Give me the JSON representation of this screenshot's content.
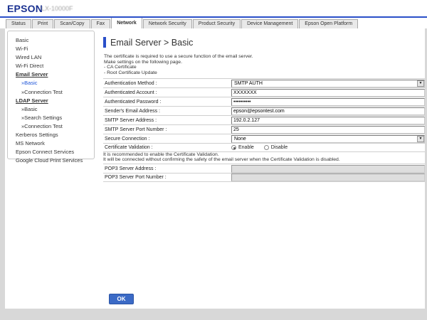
{
  "header": {
    "logo": "EPSON",
    "model": "LX-10000F"
  },
  "tabs": [
    {
      "label": "Status",
      "active": false
    },
    {
      "label": "Print",
      "active": false
    },
    {
      "label": "Scan/Copy",
      "active": false
    },
    {
      "label": "Fax",
      "active": false
    },
    {
      "label": "Network",
      "active": true
    },
    {
      "label": "Network Security",
      "active": false
    },
    {
      "label": "Product Security",
      "active": false
    },
    {
      "label": "Device Management",
      "active": false
    },
    {
      "label": "Epson Open Platform",
      "active": false
    }
  ],
  "sidebar": {
    "items": [
      {
        "label": "Basic",
        "type": "top",
        "selected": false
      },
      {
        "label": "Wi-Fi",
        "type": "top",
        "selected": false
      },
      {
        "label": "Wired LAN",
        "type": "top",
        "selected": false
      },
      {
        "label": "Wi-Fi Direct",
        "type": "top",
        "selected": false
      },
      {
        "label": "Email Server",
        "type": "section",
        "selected": false
      },
      {
        "label": "»Basic",
        "type": "sub",
        "selected": true
      },
      {
        "label": "»Connection Test",
        "type": "sub",
        "selected": false
      },
      {
        "label": "LDAP Server",
        "type": "section",
        "selected": false
      },
      {
        "label": "»Basic",
        "type": "sub",
        "selected": false
      },
      {
        "label": "»Search Settings",
        "type": "sub",
        "selected": false
      },
      {
        "label": "»Connection Test",
        "type": "sub",
        "selected": false
      },
      {
        "label": "Kerberos Settings",
        "type": "top",
        "selected": false
      },
      {
        "label": "MS Network",
        "type": "top",
        "selected": false
      },
      {
        "label": "Epson Connect Services",
        "type": "top",
        "selected": false
      },
      {
        "label": "Google Cloud Print Services",
        "type": "top",
        "selected": false
      }
    ]
  },
  "main": {
    "title": "Email Server > Basic",
    "description": [
      "The certificate is required to use a secure function of the email server.",
      "Make settings on the following page.",
      "- CA Certificate",
      "- Root Certificate Update"
    ],
    "form": {
      "rows": [
        {
          "label": "Authentication Method :",
          "type": "select",
          "value": "SMTP AUTH"
        },
        {
          "label": "Authenticated Account :",
          "type": "text",
          "value": "XXXXXXX"
        },
        {
          "label": "Authenticated Password :",
          "type": "password",
          "value": "••••••••••"
        },
        {
          "label": "Sender's Email Address :",
          "type": "text",
          "value": "epson@epsontest.com"
        },
        {
          "label": "SMTP Server Address :",
          "type": "text",
          "value": "192.0.2.127"
        },
        {
          "label": "SMTP Server Port Number :",
          "type": "text",
          "value": "25"
        },
        {
          "label": "Secure Connection :",
          "type": "select",
          "value": "None"
        },
        {
          "label": "Certificate Validation :",
          "type": "radio",
          "options": [
            "Enable",
            "Disable"
          ],
          "selected": "Enable"
        }
      ],
      "note": [
        "It is recommended to enable the Certificate Validation.",
        "It will be connected without confirming the safety of the email server when the Certificate Validation is disabled."
      ],
      "pop3_rows": [
        {
          "label": "POP3 Server Address :",
          "type": "text",
          "value": "",
          "disabled": true
        },
        {
          "label": "POP3 Server Port Number :",
          "type": "text",
          "value": "",
          "disabled": true
        }
      ]
    },
    "ok_label": "OK"
  },
  "colors": {
    "accent_blue": "#2a4fc9",
    "logo_navy": "#1b3291",
    "link_blue": "#1d54d8",
    "ok_blue": "#3b6ac6"
  }
}
